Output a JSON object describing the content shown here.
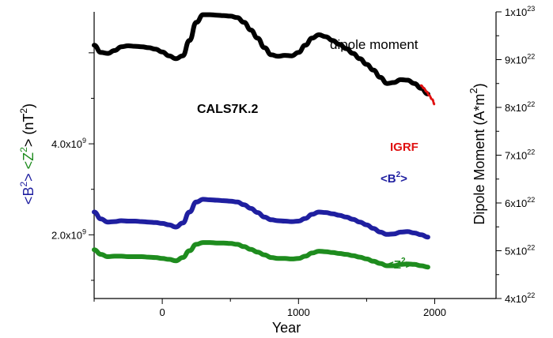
{
  "chart_data": {
    "type": "line",
    "title": "",
    "xlabel": "Year",
    "xlim": [
      -500,
      2450
    ],
    "x_ticks": [
      0,
      1000,
      2000
    ],
    "x_tick_labels": [
      "0",
      "1000",
      "2000"
    ],
    "left_axis": {
      "label_parts": [
        {
          "text": "<B",
          "color": "#1f1fa0",
          "sup": false
        },
        {
          "text": "2",
          "color": "#1f1fa0",
          "sup": true
        },
        {
          "text": ">  ",
          "color": "#1f1fa0",
          "sup": false
        },
        {
          "text": "<Z",
          "color": "#1e8c1e",
          "sup": false
        },
        {
          "text": "2",
          "color": "#1e8c1e",
          "sup": true
        },
        {
          "text": ">  (nT",
          "color": "#000000",
          "sup": false
        },
        {
          "text": "2",
          "color": "#000000",
          "sup": true
        },
        {
          "text": ")",
          "color": "#000000",
          "sup": false
        }
      ],
      "ylim": [
        600000000,
        6900000000
      ],
      "ticks": [
        {
          "value": 2000000000,
          "mant": "2.0x10",
          "exp": "9"
        },
        {
          "value": 4000000000,
          "mant": "4.0x10",
          "exp": "9"
        }
      ]
    },
    "right_axis": {
      "label": "Dipole Moment (A*m",
      "label_sup": "2",
      "label_close": ")",
      "ylim": [
        4e+22,
        1e+23
      ],
      "ticks": [
        {
          "value": 4e+22,
          "mant": "4x10",
          "exp": "22"
        },
        {
          "value": 5e+22,
          "mant": "5x10",
          "exp": "22"
        },
        {
          "value": 6e+22,
          "mant": "6x10",
          "exp": "22"
        },
        {
          "value": 7e+22,
          "mant": "7x10",
          "exp": "22"
        },
        {
          "value": 8e+22,
          "mant": "8x10",
          "exp": "22"
        },
        {
          "value": 9e+22,
          "mant": "9x10",
          "exp": "22"
        },
        {
          "value": 1e+23,
          "mant": "1x10",
          "exp": "23"
        }
      ]
    },
    "series": [
      {
        "name": "dipole moment",
        "axis": "right",
        "color": "#000000",
        "x": [
          -500,
          -450,
          -400,
          -350,
          -300,
          -250,
          -200,
          -150,
          -100,
          -50,
          0,
          50,
          100,
          150,
          200,
          250,
          300,
          350,
          400,
          450,
          500,
          550,
          600,
          650,
          700,
          750,
          800,
          850,
          900,
          950,
          1000,
          1050,
          1100,
          1150,
          1200,
          1250,
          1300,
          1350,
          1400,
          1450,
          1500,
          1550,
          1600,
          1650,
          1700,
          1750,
          1800,
          1850,
          1900,
          1950
        ],
        "values": [
          9.3e+22,
          9.15e+22,
          9.13e+22,
          9.19e+22,
          9.27e+22,
          9.29e+22,
          9.28e+22,
          9.27e+22,
          9.25e+22,
          9.22e+22,
          9.16e+22,
          9.08e+22,
          9.02e+22,
          9.08e+22,
          9.4e+22,
          9.78e+22,
          9.94e+22,
          9.94e+22,
          9.93e+22,
          9.92e+22,
          9.91e+22,
          9.88e+22,
          9.78e+22,
          9.62e+22,
          9.45e+22,
          9.25e+22,
          9.1e+22,
          9.07e+22,
          9.09e+22,
          9.08e+22,
          9.15e+22,
          9.3e+22,
          9.45e+22,
          9.52e+22,
          9.48e+22,
          9.4e+22,
          9.32e+22,
          9.23e+22,
          9.13e+22,
          9.02e+22,
          8.9e+22,
          8.78e+22,
          8.63e+22,
          8.5e+22,
          8.52e+22,
          8.58e+22,
          8.57e+22,
          8.5e+22,
          8.4e+22,
          8.28e+22
        ]
      },
      {
        "name": "<B²>",
        "axis": "left",
        "color": "#1f1fa0",
        "x": [
          -500,
          -450,
          -400,
          -350,
          -300,
          -250,
          -200,
          -150,
          -100,
          -50,
          0,
          50,
          100,
          150,
          200,
          250,
          300,
          350,
          400,
          450,
          500,
          550,
          600,
          650,
          700,
          750,
          800,
          850,
          900,
          950,
          1000,
          1050,
          1100,
          1150,
          1200,
          1250,
          1300,
          1350,
          1400,
          1450,
          1500,
          1550,
          1600,
          1650,
          1700,
          1750,
          1800,
          1850,
          1900,
          1950
        ],
        "values": [
          2500000000,
          2350000000,
          2280000000,
          2290000000,
          2310000000,
          2300000000,
          2300000000,
          2290000000,
          2280000000,
          2270000000,
          2250000000,
          2220000000,
          2170000000,
          2260000000,
          2500000000,
          2720000000,
          2780000000,
          2770000000,
          2760000000,
          2750000000,
          2740000000,
          2720000000,
          2660000000,
          2580000000,
          2490000000,
          2390000000,
          2330000000,
          2310000000,
          2300000000,
          2290000000,
          2300000000,
          2360000000,
          2450000000,
          2500000000,
          2490000000,
          2460000000,
          2430000000,
          2390000000,
          2340000000,
          2280000000,
          2220000000,
          2140000000,
          2060000000,
          2010000000,
          2020000000,
          2060000000,
          2070000000,
          2040000000,
          2000000000,
          1950000000
        ]
      },
      {
        "name": "<Z²>",
        "axis": "left",
        "color": "#1e8c1e",
        "x": [
          -500,
          -450,
          -400,
          -350,
          -300,
          -250,
          -200,
          -150,
          -100,
          -50,
          0,
          50,
          100,
          150,
          200,
          250,
          300,
          350,
          400,
          450,
          500,
          550,
          600,
          650,
          700,
          750,
          800,
          850,
          900,
          950,
          1000,
          1050,
          1100,
          1150,
          1200,
          1250,
          1300,
          1350,
          1400,
          1450,
          1500,
          1550,
          1600,
          1650,
          1700,
          1750,
          1800,
          1850,
          1900,
          1950
        ],
        "values": [
          1670000000,
          1570000000,
          1520000000,
          1530000000,
          1530000000,
          1520000000,
          1520000000,
          1520000000,
          1510000000,
          1500000000,
          1480000000,
          1460000000,
          1430000000,
          1500000000,
          1650000000,
          1790000000,
          1830000000,
          1830000000,
          1820000000,
          1820000000,
          1810000000,
          1790000000,
          1740000000,
          1680000000,
          1620000000,
          1560000000,
          1500000000,
          1480000000,
          1480000000,
          1470000000,
          1480000000,
          1530000000,
          1600000000,
          1640000000,
          1630000000,
          1610000000,
          1590000000,
          1570000000,
          1540000000,
          1510000000,
          1470000000,
          1420000000,
          1370000000,
          1320000000,
          1320000000,
          1350000000,
          1360000000,
          1350000000,
          1320000000,
          1290000000
        ]
      },
      {
        "name": "IGRF",
        "axis": "right",
        "color": "#e01010",
        "x": [
          1900,
          1920,
          1940,
          1960,
          1980,
          2000
        ],
        "values": [
          8.46e+22,
          8.4e+22,
          8.33e+22,
          8.25e+22,
          8.17e+22,
          8.06e+22
        ]
      }
    ],
    "annotations": [
      {
        "text": "dipole moment",
        "color": "#000000"
      },
      {
        "text": "CALS7K.2",
        "color": "#000000"
      },
      {
        "text": "IGRF",
        "color": "#e01010"
      },
      {
        "base": "<B",
        "sup": "2",
        "close": ">",
        "color": "#1f1fa0"
      },
      {
        "base": "<Z",
        "sup": "2",
        "close": ">",
        "color": "#1e8c1e"
      }
    ],
    "grid": false,
    "legend": "none"
  }
}
